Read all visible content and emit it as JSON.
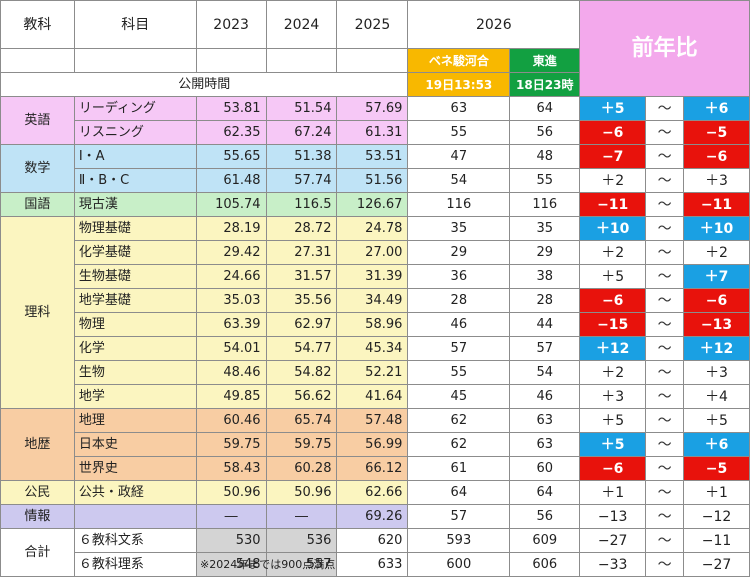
{
  "colors": {
    "english": "#f6c8f6",
    "math": "#bfe3f6",
    "japanese": "#c8efc8",
    "science": "#fbf5c0",
    "geohist": "#f8cda3",
    "civics": "#fbf5c0",
    "info": "#cdc9ef",
    "total": "#ffffff",
    "red": "#e8120c",
    "blue": "#1aa0e3",
    "benesse": "#f8b800",
    "toshin": "#12a041",
    "yoy_header": "#f3a9ec"
  },
  "header": {
    "subject_group": "教科",
    "subject": "科目",
    "y2023": "2023",
    "y2024": "2024",
    "y2025": "2025",
    "y2026": "2026",
    "benesse": "ベネ駿河合",
    "benesse_time": "19日13:53",
    "toshin": "東進",
    "toshin_time": "18日23時",
    "yoy": "前年比",
    "public_time": "公開時間"
  },
  "rows": [
    {
      "group": "英語",
      "subject": "リーディング",
      "v2023": "53.81",
      "v2024": "51.54",
      "v2025": "57.69",
      "benesse": "63",
      "toshin": "64",
      "yoy1": "＋5",
      "yoy1_style": "blue",
      "tilde": "〜",
      "yoy2": "＋6",
      "yoy2_style": "blue",
      "color": "english"
    },
    {
      "group": "",
      "subject": "リスニング",
      "v2023": "62.35",
      "v2024": "67.24",
      "v2025": "61.31",
      "benesse": "55",
      "toshin": "56",
      "yoy1": "−6",
      "yoy1_style": "red",
      "tilde": "〜",
      "yoy2": "−5",
      "yoy2_style": "red",
      "color": "english"
    },
    {
      "group": "数学",
      "subject": "Ⅰ・A",
      "v2023": "55.65",
      "v2024": "51.38",
      "v2025": "53.51",
      "benesse": "47",
      "toshin": "48",
      "yoy1": "−7",
      "yoy1_style": "red",
      "tilde": "〜",
      "yoy2": "−6",
      "yoy2_style": "red",
      "color": "math"
    },
    {
      "group": "",
      "subject": "Ⅱ・B・C",
      "v2023": "61.48",
      "v2024": "57.74",
      "v2025": "51.56",
      "benesse": "54",
      "toshin": "55",
      "yoy1": "＋2",
      "yoy1_style": "white",
      "tilde": "〜",
      "yoy2": "＋3",
      "yoy2_style": "white",
      "color": "math"
    },
    {
      "group": "国語",
      "subject": "現古漢",
      "v2023": "105.74",
      "v2024": "116.5",
      "v2025": "126.67",
      "benesse": "116",
      "toshin": "116",
      "yoy1": "−11",
      "yoy1_style": "red",
      "tilde": "〜",
      "yoy2": "−11",
      "yoy2_style": "red",
      "color": "japanese"
    },
    {
      "group": "理科",
      "subject": "物理基礎",
      "v2023": "28.19",
      "v2024": "28.72",
      "v2025": "24.78",
      "benesse": "35",
      "toshin": "35",
      "yoy1": "＋10",
      "yoy1_style": "blue",
      "tilde": "〜",
      "yoy2": "＋10",
      "yoy2_style": "blue",
      "color": "science"
    },
    {
      "group": "",
      "subject": "化学基礎",
      "v2023": "29.42",
      "v2024": "27.31",
      "v2025": "27.00",
      "benesse": "29",
      "toshin": "29",
      "yoy1": "＋2",
      "yoy1_style": "white",
      "tilde": "〜",
      "yoy2": "＋2",
      "yoy2_style": "white",
      "color": "science"
    },
    {
      "group": "",
      "subject": "生物基礎",
      "v2023": "24.66",
      "v2024": "31.57",
      "v2025": "31.39",
      "benesse": "36",
      "toshin": "38",
      "yoy1": "＋5",
      "yoy1_style": "white",
      "tilde": "〜",
      "yoy2": "＋7",
      "yoy2_style": "blue",
      "color": "science"
    },
    {
      "group": "",
      "subject": "地学基礎",
      "v2023": "35.03",
      "v2024": "35.56",
      "v2025": "34.49",
      "benesse": "28",
      "toshin": "28",
      "yoy1": "−6",
      "yoy1_style": "red",
      "tilde": "〜",
      "yoy2": "−6",
      "yoy2_style": "red",
      "color": "science"
    },
    {
      "group": "",
      "subject": "物理",
      "v2023": "63.39",
      "v2024": "62.97",
      "v2025": "58.96",
      "benesse": "46",
      "toshin": "44",
      "yoy1": "−15",
      "yoy1_style": "red",
      "tilde": "〜",
      "yoy2": "−13",
      "yoy2_style": "red",
      "color": "science"
    },
    {
      "group": "",
      "subject": "化学",
      "v2023": "54.01",
      "v2024": "54.77",
      "v2025": "45.34",
      "benesse": "57",
      "toshin": "57",
      "yoy1": "＋12",
      "yoy1_style": "blue",
      "tilde": "〜",
      "yoy2": "＋12",
      "yoy2_style": "blue",
      "color": "science"
    },
    {
      "group": "",
      "subject": "生物",
      "v2023": "48.46",
      "v2024": "54.82",
      "v2025": "52.21",
      "benesse": "55",
      "toshin": "54",
      "yoy1": "＋2",
      "yoy1_style": "white",
      "tilde": "〜",
      "yoy2": "＋3",
      "yoy2_style": "white",
      "color": "science"
    },
    {
      "group": "",
      "subject": "地学",
      "v2023": "49.85",
      "v2024": "56.62",
      "v2025": "41.64",
      "benesse": "45",
      "toshin": "46",
      "yoy1": "＋3",
      "yoy1_style": "white",
      "tilde": "〜",
      "yoy2": "＋4",
      "yoy2_style": "white",
      "color": "science"
    },
    {
      "group": "地歴",
      "subject": "地理",
      "v2023": "60.46",
      "v2024": "65.74",
      "v2025": "57.48",
      "benesse": "62",
      "toshin": "63",
      "yoy1": "＋5",
      "yoy1_style": "white",
      "tilde": "〜",
      "yoy2": "＋5",
      "yoy2_style": "white",
      "color": "geohist"
    },
    {
      "group": "",
      "subject": "日本史",
      "v2023": "59.75",
      "v2024": "59.75",
      "v2025": "56.99",
      "benesse": "62",
      "toshin": "63",
      "yoy1": "＋5",
      "yoy1_style": "blue",
      "tilde": "〜",
      "yoy2": "＋6",
      "yoy2_style": "blue",
      "color": "geohist"
    },
    {
      "group": "",
      "subject": "世界史",
      "v2023": "58.43",
      "v2024": "60.28",
      "v2025": "66.12",
      "benesse": "61",
      "toshin": "60",
      "yoy1": "−6",
      "yoy1_style": "red",
      "tilde": "〜",
      "yoy2": "−5",
      "yoy2_style": "red",
      "color": "geohist"
    },
    {
      "group": "公民",
      "subject": "公共・政経",
      "v2023": "50.96",
      "v2024": "50.96",
      "v2025": "62.66",
      "benesse": "64",
      "toshin": "64",
      "yoy1": "＋1",
      "yoy1_style": "white",
      "tilde": "〜",
      "yoy2": "＋1",
      "yoy2_style": "white",
      "color": "civics"
    },
    {
      "group": "情報",
      "subject": "",
      "v2023": "",
      "v2024": "―",
      "v2025": "―",
      "v2025b": "69.26",
      "benesse": "57",
      "toshin": "56",
      "yoy1": "−13",
      "yoy1_style": "white",
      "tilde": "〜",
      "yoy2": "−12",
      "yoy2_style": "white",
      "color": "info"
    },
    {
      "group": "合計",
      "subject": "６教科文系",
      "v2023": "530",
      "v2024": "536",
      "v2025": "620",
      "benesse": "593",
      "toshin": "609",
      "yoy1": "−27",
      "yoy1_style": "white",
      "tilde": "〜",
      "yoy2": "−11",
      "yoy2_style": "white",
      "color": "total"
    },
    {
      "group": "",
      "subject": "６教科理系",
      "v2023": "548",
      "v2024": "557",
      "v2025": "633",
      "benesse": "600",
      "toshin": "606",
      "yoy1": "−33",
      "yoy1_style": "white",
      "tilde": "〜",
      "yoy2": "−27",
      "yoy2_style": "white",
      "color": "total"
    }
  ],
  "note": "※2024年までは900点満点"
}
